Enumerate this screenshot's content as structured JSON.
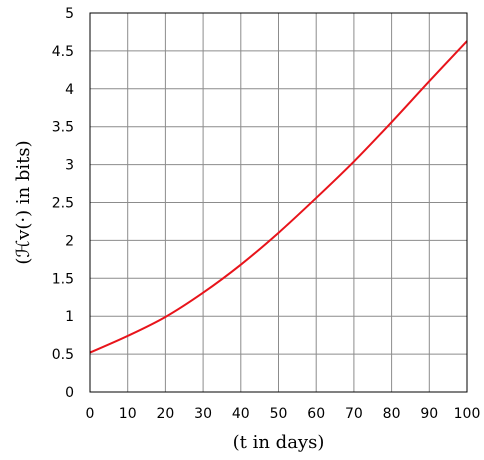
{
  "chart_data": {
    "type": "line",
    "title": "",
    "xlabel": "(t in days)",
    "ylabel": "(ℋv(·) in bits)",
    "xlim": [
      0,
      100
    ],
    "ylim": [
      0,
      5
    ],
    "xticks": [
      0,
      10,
      20,
      30,
      40,
      50,
      60,
      70,
      80,
      90,
      100
    ],
    "yticks": [
      0,
      0.5,
      1,
      1.5,
      2,
      2.5,
      3,
      3.5,
      4,
      4.5,
      5
    ],
    "xtick_labels": [
      "0",
      "10",
      "20",
      "30",
      "40",
      "50",
      "60",
      "70",
      "80",
      "90",
      "100"
    ],
    "ytick_labels": [
      "0",
      "0.5",
      "1",
      "1.5",
      "2",
      "2.5",
      "3",
      "3.5",
      "4",
      "4.5",
      "5"
    ],
    "grid": true,
    "series": [
      {
        "color": "#e8141b",
        "x": [
          0,
          10,
          20,
          30,
          40,
          50,
          60,
          70,
          80,
          90,
          100
        ],
        "y": [
          0.52,
          0.74,
          0.99,
          1.31,
          1.68,
          2.1,
          2.56,
          3.04,
          3.56,
          4.1,
          4.63
        ]
      }
    ]
  }
}
